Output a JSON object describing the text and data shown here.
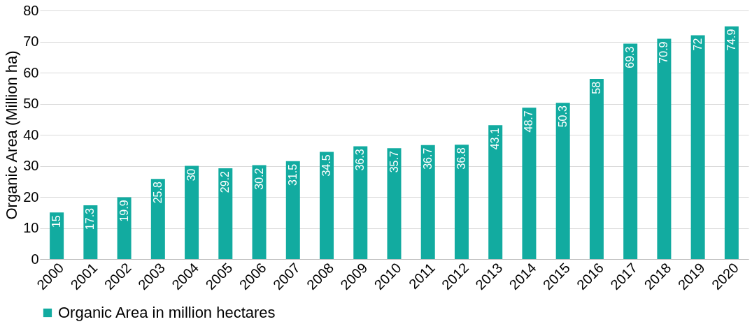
{
  "chart_data": {
    "type": "bar",
    "ylabel": "Organic Area (Million ha)",
    "categories": [
      "2000",
      "2001",
      "2002",
      "2003",
      "2004",
      "2005",
      "2006",
      "2007",
      "2008",
      "2009",
      "2010",
      "2011",
      "2012",
      "2013",
      "2014",
      "2015",
      "2016",
      "2017",
      "2018",
      "2019",
      "2020"
    ],
    "series": [
      {
        "name": "Organic Area in million hectares",
        "color": "#12aba0",
        "values": [
          15,
          17.3,
          19.9,
          25.8,
          30,
          29.2,
          30.2,
          31.5,
          34.5,
          36.3,
          35.7,
          36.7,
          36.8,
          43.1,
          48.7,
          50.3,
          58,
          69.3,
          70.9,
          72,
          74.9
        ]
      }
    ],
    "ylim": [
      0,
      80
    ],
    "yticks": [
      0,
      10,
      20,
      30,
      40,
      50,
      60,
      70,
      80
    ],
    "grid": "y",
    "legend": "bottom",
    "data_labels": true
  }
}
